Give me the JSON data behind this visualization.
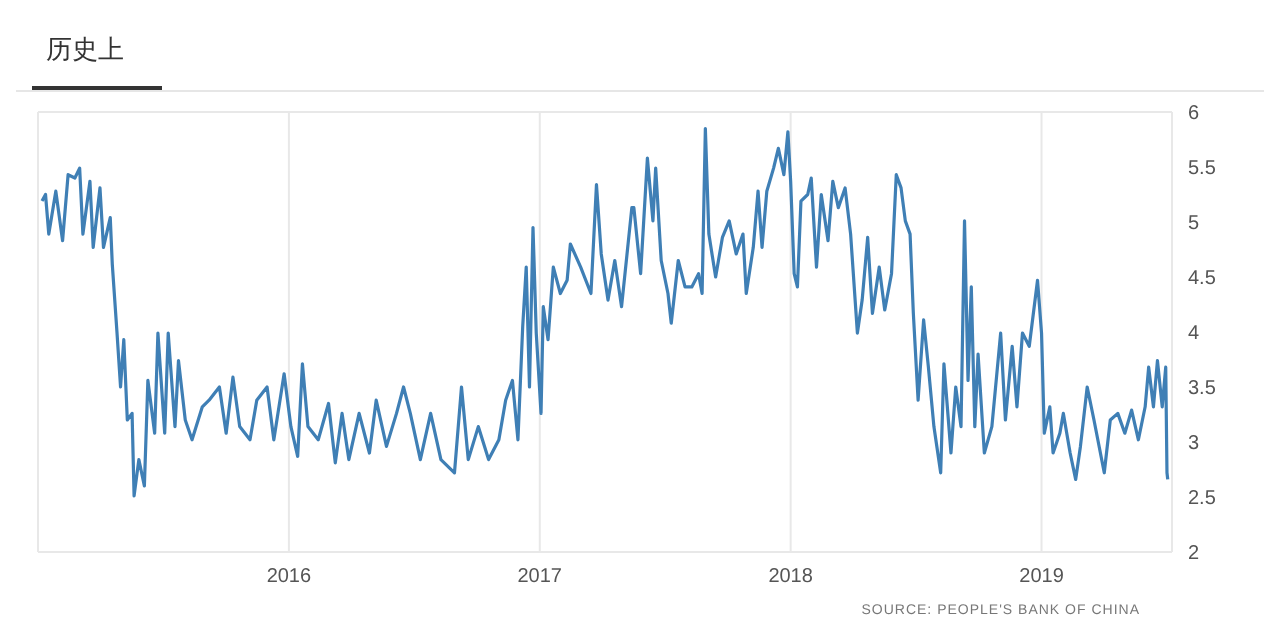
{
  "chart_data": {
    "type": "line",
    "title": "历史上",
    "annotations": [
      "SOURCE: PEOPLE'S BANK OF CHINA"
    ],
    "x": [
      2015.016,
      2015.03,
      2015.043,
      2015.071,
      2015.098,
      2015.12,
      2015.147,
      2015.166,
      2015.179,
      2015.207,
      2015.22,
      2015.247,
      2015.261,
      2015.288,
      2015.296,
      2015.315,
      2015.329,
      2015.342,
      2015.356,
      2015.375,
      2015.383,
      2015.402,
      2015.424,
      2015.438,
      2015.465,
      2015.478,
      2015.505,
      2015.519,
      2015.546,
      2015.56,
      2015.587,
      2015.614,
      2015.655,
      2015.682,
      2015.723,
      2015.75,
      2015.777,
      2015.804,
      2015.845,
      2015.872,
      2015.913,
      2015.94,
      2015.981,
      2016.008,
      2016.035,
      2016.054,
      2016.076,
      2016.117,
      2016.158,
      2016.185,
      2016.212,
      2016.239,
      2016.28,
      2016.321,
      2016.348,
      2016.389,
      2016.429,
      2016.457,
      2016.484,
      2016.524,
      2016.565,
      2016.606,
      2016.66,
      2016.688,
      2016.715,
      2016.755,
      2016.796,
      2016.837,
      2016.864,
      2016.891,
      2016.913,
      2016.932,
      2016.946,
      2016.959,
      2016.973,
      2016.986,
      2017.005,
      2017.014,
      2017.033,
      2017.054,
      2017.082,
      2017.109,
      2017.122,
      2017.163,
      2017.204,
      2017.226,
      2017.245,
      2017.272,
      2017.299,
      2017.326,
      2017.367,
      2017.375,
      2017.402,
      2017.429,
      2017.451,
      2017.462,
      2017.484,
      2017.511,
      2017.524,
      2017.552,
      2017.579,
      2017.606,
      2017.633,
      2017.647,
      2017.66,
      2017.674,
      2017.701,
      2017.728,
      2017.755,
      2017.783,
      2017.81,
      2017.823,
      2017.851,
      2017.87,
      2017.886,
      2017.905,
      2017.932,
      2017.951,
      2017.973,
      2017.989,
      2018.0,
      2018.014,
      2018.027,
      2018.041,
      2018.068,
      2018.082,
      2018.103,
      2018.122,
      2018.149,
      2018.168,
      2018.19,
      2018.217,
      2018.239,
      2018.266,
      2018.285,
      2018.307,
      2018.326,
      2018.353,
      2018.375,
      2018.402,
      2018.421,
      2018.44,
      2018.457,
      2018.476,
      2018.489,
      2018.508,
      2018.53,
      2018.549,
      2018.571,
      2018.598,
      2018.611,
      2018.639,
      2018.658,
      2018.679,
      2018.693,
      2018.707,
      2018.72,
      2018.734,
      2018.747,
      2018.772,
      2018.802,
      2018.837,
      2018.856,
      2018.883,
      2018.902,
      2018.924,
      2018.951,
      2018.984,
      2019.0,
      2019.011,
      2019.033,
      2019.046,
      2019.073,
      2019.087,
      2019.114,
      2019.136,
      2019.155,
      2019.182,
      2019.209,
      2019.25,
      2019.274,
      2019.304,
      2019.332,
      2019.359,
      2019.386,
      2019.413,
      2019.427,
      2019.446,
      2019.462,
      2019.481,
      2019.495,
      2019.5,
      2019.503
    ],
    "series": [
      {
        "color": "#3f7fb5",
        "values": [
          5.19,
          5.25,
          4.89,
          5.28,
          4.83,
          5.43,
          5.4,
          5.49,
          4.89,
          5.37,
          4.77,
          5.31,
          4.77,
          5.04,
          4.62,
          3.99,
          3.5,
          3.93,
          3.2,
          3.26,
          2.51,
          2.84,
          2.6,
          3.56,
          3.08,
          3.99,
          3.08,
          3.99,
          3.14,
          3.74,
          3.2,
          3.02,
          3.32,
          3.38,
          3.5,
          3.08,
          3.59,
          3.14,
          3.02,
          3.38,
          3.5,
          3.02,
          3.62,
          3.14,
          2.87,
          3.71,
          3.14,
          3.02,
          3.35,
          2.81,
          3.26,
          2.84,
          3.26,
          2.9,
          3.38,
          2.96,
          3.26,
          3.5,
          3.26,
          2.84,
          3.26,
          2.84,
          2.72,
          3.5,
          2.84,
          3.14,
          2.84,
          3.02,
          3.38,
          3.56,
          3.02,
          4.05,
          4.59,
          3.5,
          4.95,
          3.99,
          3.26,
          4.23,
          3.93,
          4.59,
          4.35,
          4.47,
          4.8,
          4.59,
          4.35,
          5.34,
          4.71,
          4.29,
          4.65,
          4.23,
          5.13,
          5.13,
          4.53,
          5.58,
          5.01,
          5.49,
          4.65,
          4.35,
          4.08,
          4.65,
          4.41,
          4.41,
          4.53,
          4.35,
          5.85,
          4.89,
          4.5,
          4.86,
          5.01,
          4.71,
          4.89,
          4.35,
          4.77,
          5.28,
          4.77,
          5.28,
          5.49,
          5.67,
          5.43,
          5.82,
          5.37,
          4.53,
          4.41,
          5.19,
          5.25,
          5.4,
          4.59,
          5.25,
          4.83,
          5.37,
          5.13,
          5.31,
          4.89,
          3.99,
          4.29,
          4.86,
          4.17,
          4.59,
          4.2,
          4.53,
          5.43,
          5.31,
          5.01,
          4.89,
          4.17,
          3.38,
          4.11,
          3.68,
          3.14,
          2.72,
          3.71,
          2.9,
          3.5,
          3.14,
          5.01,
          3.56,
          4.41,
          3.14,
          3.8,
          2.9,
          3.14,
          3.99,
          3.2,
          3.87,
          3.32,
          3.99,
          3.87,
          4.47,
          3.99,
          3.08,
          3.32,
          2.9,
          3.08,
          3.26,
          2.9,
          2.66,
          2.96,
          3.5,
          3.2,
          2.72,
          3.2,
          3.26,
          3.08,
          3.29,
          3.02,
          3.32,
          3.68,
          3.32,
          3.74,
          3.32,
          3.68,
          2.72,
          2.66
        ]
      }
    ],
    "xlim": [
      2015.0,
      2019.52
    ],
    "xticks": [
      2016,
      2017,
      2018,
      2019
    ],
    "ylim": [
      2,
      6
    ],
    "yticks": [
      2,
      2.5,
      3,
      3.5,
      4,
      4.5,
      5,
      5.5,
      6
    ],
    "grid": true,
    "legend": false,
    "marker": "none",
    "line_style": "solid"
  }
}
